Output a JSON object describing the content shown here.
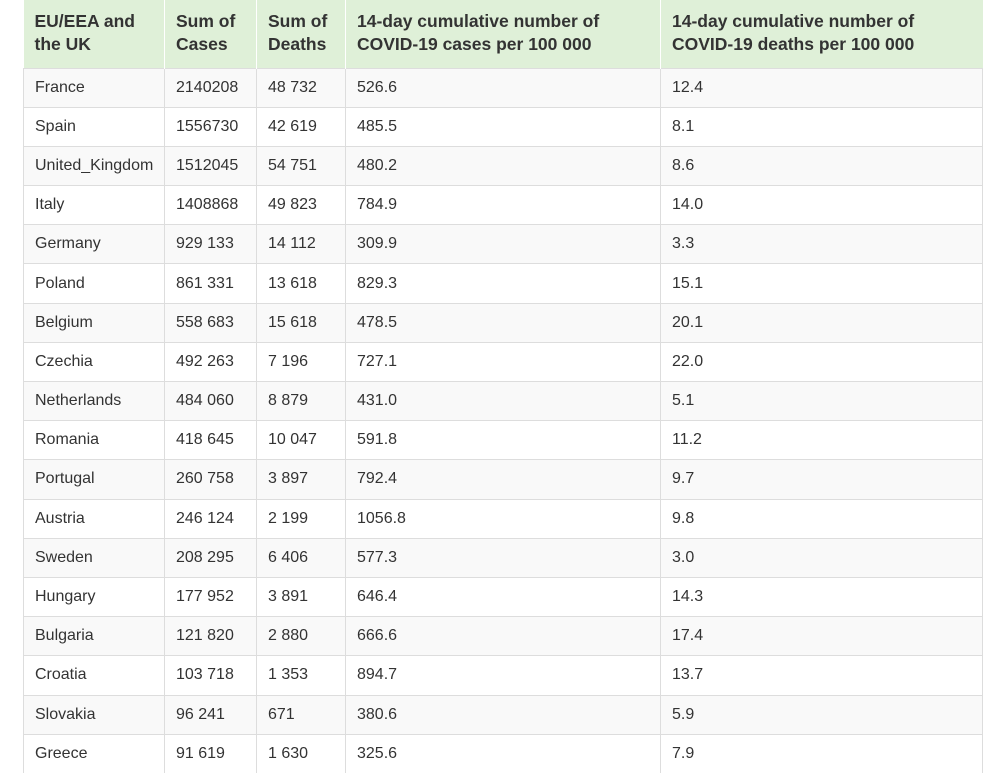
{
  "table": {
    "headers": [
      "EU/EEA and the UK",
      "Sum of Cases",
      "Sum of Deaths",
      "14-day cumulative number of COVID-19 cases per 100 000",
      "14-day cumulative number of COVID-19 deaths per 100 000"
    ],
    "rows": [
      [
        "France",
        "2140208",
        "48 732",
        "526.6",
        "12.4"
      ],
      [
        "Spain",
        "1556730",
        "42 619",
        "485.5",
        "8.1"
      ],
      [
        "United_Kingdom",
        "1512045",
        "54 751",
        "480.2",
        "8.6"
      ],
      [
        "Italy",
        "1408868",
        "49 823",
        "784.9",
        "14.0"
      ],
      [
        "Germany",
        "929 133",
        "14 112",
        "309.9",
        "3.3"
      ],
      [
        "Poland",
        "861 331",
        "13 618",
        "829.3",
        "15.1"
      ],
      [
        "Belgium",
        "558 683",
        "15 618",
        "478.5",
        "20.1"
      ],
      [
        "Czechia",
        "492 263",
        "7 196",
        "727.1",
        "22.0"
      ],
      [
        "Netherlands",
        "484 060",
        "8 879",
        "431.0",
        "5.1"
      ],
      [
        "Romania",
        "418 645",
        "10 047",
        "591.8",
        "11.2"
      ],
      [
        "Portugal",
        "260 758",
        "3 897",
        "792.4",
        "9.7"
      ],
      [
        "Austria",
        "246 124",
        "2 199",
        "1056.8",
        "9.8"
      ],
      [
        "Sweden",
        "208 295",
        "6 406",
        "577.3",
        "3.0"
      ],
      [
        "Hungary",
        "177 952",
        "3 891",
        "646.4",
        "14.3"
      ],
      [
        "Bulgaria",
        "121 820",
        "2 880",
        "666.6",
        "17.4"
      ],
      [
        "Croatia",
        "103 718",
        "1 353",
        "894.7",
        "13.7"
      ],
      [
        "Slovakia",
        "96 241",
        "671",
        "380.6",
        "5.9"
      ],
      [
        "Greece",
        "91 619",
        "1 630",
        "325.6",
        "7.9"
      ]
    ]
  },
  "colors": {
    "header_bg": "#dff0d8",
    "stripe_bg": "#f9f9f9",
    "border": "#dddddd",
    "text": "#333333"
  }
}
